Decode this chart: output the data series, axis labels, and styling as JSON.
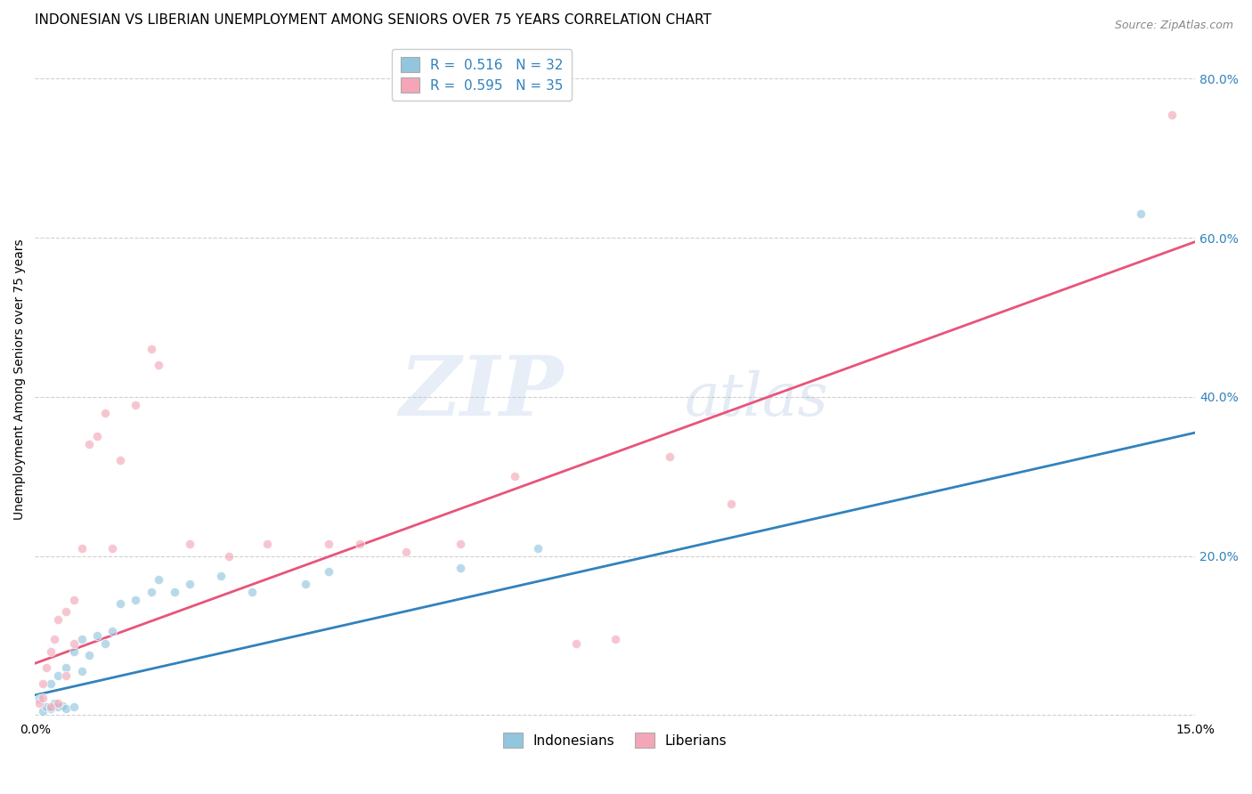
{
  "title": "INDONESIAN VS LIBERIAN UNEMPLOYMENT AMONG SENIORS OVER 75 YEARS CORRELATION CHART",
  "source": "Source: ZipAtlas.com",
  "ylabel": "Unemployment Among Seniors over 75 years",
  "xlim": [
    0.0,
    0.15
  ],
  "ylim": [
    -0.005,
    0.85
  ],
  "watermark_zip": "ZIP",
  "watermark_atlas": "atlas",
  "legend_r_indonesian": "R = 0.516",
  "legend_n_indonesian": "N = 32",
  "legend_r_liberian": "R = 0.595",
  "legend_n_liberian": "N = 35",
  "indonesian_color": "#92c5de",
  "liberian_color": "#f4a6b8",
  "indonesian_line_color": "#3182bd",
  "liberian_line_color": "#e8547a",
  "legend_r_color": "#3182bd",
  "legend_n_color": "#e8301a",
  "indonesian_scatter_x": [
    0.0005,
    0.001,
    0.0015,
    0.002,
    0.002,
    0.0025,
    0.003,
    0.003,
    0.0035,
    0.004,
    0.004,
    0.005,
    0.005,
    0.006,
    0.006,
    0.007,
    0.008,
    0.009,
    0.01,
    0.011,
    0.013,
    0.015,
    0.016,
    0.018,
    0.02,
    0.024,
    0.028,
    0.035,
    0.038,
    0.055,
    0.065,
    0.143
  ],
  "indonesian_scatter_y": [
    0.02,
    0.005,
    0.01,
    0.04,
    0.008,
    0.015,
    0.05,
    0.01,
    0.012,
    0.06,
    0.008,
    0.08,
    0.01,
    0.095,
    0.055,
    0.075,
    0.1,
    0.09,
    0.105,
    0.14,
    0.145,
    0.155,
    0.17,
    0.155,
    0.165,
    0.175,
    0.155,
    0.165,
    0.18,
    0.185,
    0.21,
    0.63
  ],
  "liberian_scatter_x": [
    0.0005,
    0.001,
    0.001,
    0.0015,
    0.002,
    0.002,
    0.0025,
    0.003,
    0.003,
    0.004,
    0.004,
    0.005,
    0.005,
    0.006,
    0.007,
    0.008,
    0.009,
    0.01,
    0.011,
    0.013,
    0.015,
    0.016,
    0.02,
    0.025,
    0.03,
    0.038,
    0.042,
    0.048,
    0.055,
    0.062,
    0.07,
    0.075,
    0.082,
    0.09,
    0.147
  ],
  "liberian_scatter_y": [
    0.015,
    0.04,
    0.022,
    0.06,
    0.08,
    0.01,
    0.095,
    0.12,
    0.015,
    0.13,
    0.05,
    0.145,
    0.09,
    0.21,
    0.34,
    0.35,
    0.38,
    0.21,
    0.32,
    0.39,
    0.46,
    0.44,
    0.215,
    0.2,
    0.215,
    0.215,
    0.215,
    0.205,
    0.215,
    0.3,
    0.09,
    0.095,
    0.325,
    0.265,
    0.755
  ],
  "indonesian_trend_x": [
    0.0,
    0.15
  ],
  "indonesian_trend_y": [
    0.025,
    0.355
  ],
  "liberian_trend_x": [
    0.0,
    0.15
  ],
  "liberian_trend_y": [
    0.065,
    0.595
  ],
  "background_color": "#ffffff",
  "grid_color": "#d0d0d0",
  "title_fontsize": 11,
  "axis_label_fontsize": 10,
  "tick_fontsize": 10,
  "legend_fontsize": 11,
  "scatter_size": 55,
  "scatter_alpha": 0.65
}
